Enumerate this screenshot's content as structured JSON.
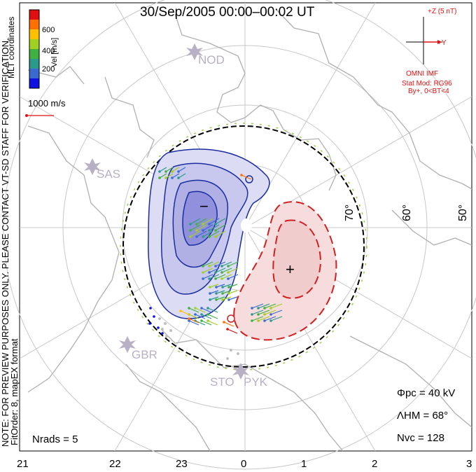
{
  "title": "30/Sep/2005 00:00–00:02 UT",
  "velocity_scale": {
    "label": "Vel [m/s]",
    "ticks": [
      "200",
      "400",
      "600"
    ],
    "colors": [
      "#1010e0",
      "#3a6ad0",
      "#2a9a8a",
      "#40b040",
      "#a0d020",
      "#ffc000",
      "#ff7000",
      "#e01010"
    ],
    "coord_label": "MLT coordinates",
    "reference_vector": "1000 m/s"
  },
  "imf": {
    "z_label": "+Z (5 nT)",
    "y_label": "+Y",
    "source": "OMNI IMF",
    "stat_mod": "Stat Mod: RG96",
    "condition": "By+, 0<BT<4",
    "color": "#e01010"
  },
  "notice": "NOTE: FOR PREVIEW PURPOSES ONLY. PLEASE CONTACT VT-SD STAFF FOR VERIFICATION.",
  "fit_info": "FitOrder: 8, mapEX format",
  "stations": [
    "NOD",
    "SAS",
    "GBR",
    "STO",
    "PYK"
  ],
  "latitude_labels": [
    "70°",
    "60°",
    "50°"
  ],
  "mlt_labels": [
    "21",
    "22",
    "23",
    "0",
    "1",
    "2",
    "3"
  ],
  "stats": {
    "phi_pc": "Φpc = 40 kV",
    "lambda_hm": "ΛHM = 68°",
    "n_vc": "Nvc = 128",
    "n_rads": "Nrads = 5"
  },
  "cells": {
    "negative": "−",
    "positive": "+"
  }
}
